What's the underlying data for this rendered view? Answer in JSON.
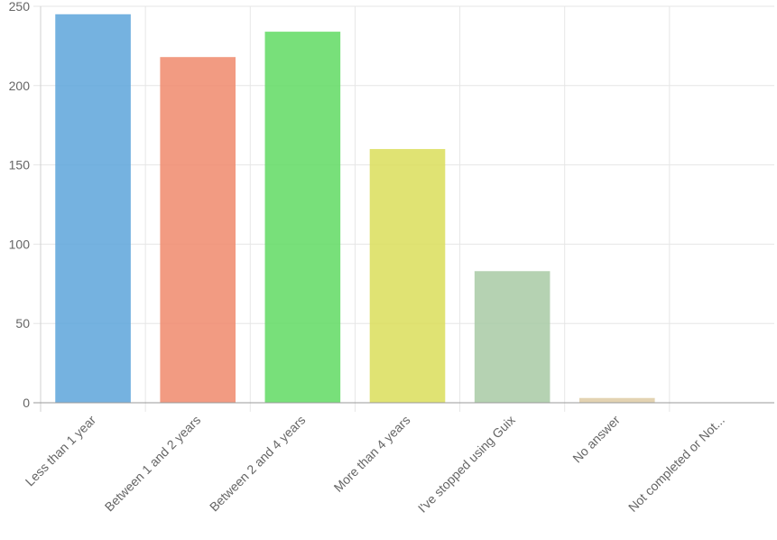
{
  "chart_data": {
    "type": "bar",
    "categories": [
      "Less than 1 year",
      "Between 1 and 2 years",
      "Between 2 and 4 years",
      "More than 4 years",
      "I've stopped using Guix",
      "No answer",
      "Not completed or Not..."
    ],
    "values": [
      245,
      218,
      234,
      160,
      83,
      3,
      0
    ],
    "colors": [
      "#5DA5DA",
      "#F08A6C",
      "#60DA63",
      "#DBDE5A",
      "#A8CAA5",
      "#DECBA4",
      "#F17CB0"
    ],
    "ylim": [
      0,
      250
    ],
    "yticks": [
      0,
      50,
      100,
      150,
      200,
      250
    ],
    "grid": true,
    "legend": "none",
    "title": "",
    "xlabel": "",
    "ylabel": ""
  }
}
